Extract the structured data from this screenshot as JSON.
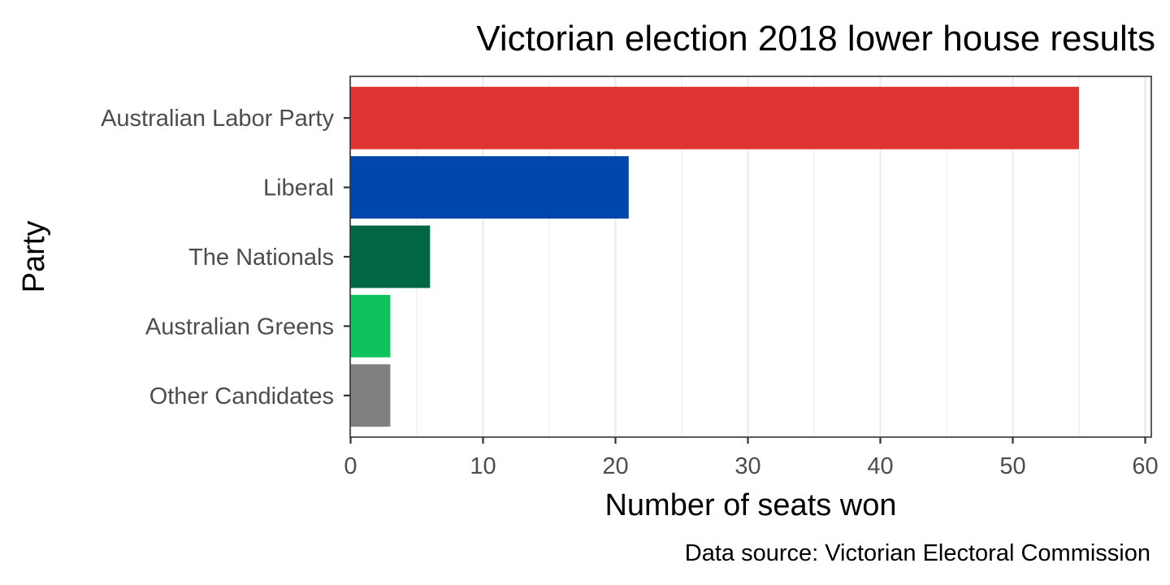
{
  "chart_data": {
    "type": "bar",
    "orientation": "horizontal",
    "title": "Victorian election 2018 lower house results",
    "xlabel": "Number of seats won",
    "ylabel": "Party",
    "caption": "Data source: Victorian Electoral Commission",
    "categories": [
      "Australian Labor Party",
      "Liberal",
      "The Nationals",
      "Australian Greens",
      "Other Candidates"
    ],
    "values": [
      55,
      21,
      6,
      3,
      3
    ],
    "colors": [
      "#e03433",
      "#0047ab",
      "#006644",
      "#10c25b",
      "#808080"
    ],
    "xlim": [
      0,
      60
    ],
    "x_ticks": [
      "0",
      "10",
      "20",
      "30",
      "40",
      "50",
      "60"
    ],
    "grid": true,
    "legend": "none"
  }
}
